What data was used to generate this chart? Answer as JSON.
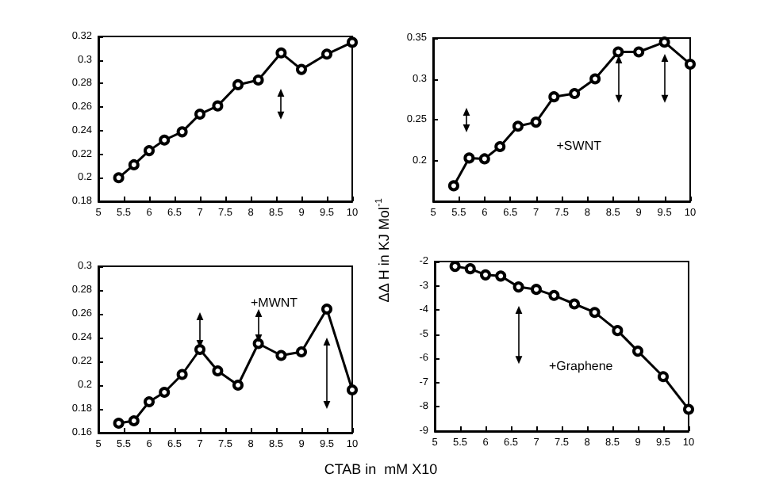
{
  "chart_data": [
    {
      "type": "line",
      "x": [
        5.4,
        5.7,
        6.0,
        6.3,
        6.65,
        7.0,
        7.35,
        7.75,
        8.15,
        8.6,
        9.0,
        9.5,
        10.0
      ],
      "values": [
        0.2,
        0.211,
        0.223,
        0.232,
        0.239,
        0.254,
        0.261,
        0.279,
        0.283,
        0.306,
        0.292,
        0.305,
        0.315
      ],
      "color": "#000000",
      "xlim": [
        5,
        10
      ],
      "xticks": [
        5,
        5.5,
        6,
        6.5,
        7,
        7.5,
        8,
        8.5,
        9,
        9.5,
        10
      ],
      "ylim": [
        0.18,
        0.32
      ],
      "yticks": [
        0.18,
        0.2,
        0.22,
        0.24,
        0.26,
        0.28,
        0.3,
        0.32
      ],
      "grid": false,
      "marker": "circle",
      "line_style": "solid"
    },
    {
      "type": "line",
      "x": [
        5.4,
        5.7,
        6.0,
        6.3,
        6.65,
        7.0,
        7.35,
        7.75,
        8.15,
        8.6,
        9.0,
        9.5,
        10.0
      ],
      "values": [
        0.169,
        0.203,
        0.202,
        0.217,
        0.242,
        0.247,
        0.278,
        0.282,
        0.3,
        0.333,
        0.333,
        0.345,
        0.318
      ],
      "color": "#000000",
      "xlim": [
        5,
        10
      ],
      "xticks": [
        5,
        5.5,
        6,
        6.5,
        7,
        7.5,
        8,
        8.5,
        9,
        9.5,
        10
      ],
      "ylim": [
        0.15,
        0.35
      ],
      "yticks": [
        0.2,
        0.25,
        0.3,
        0.35
      ],
      "grid": false,
      "marker": "circle",
      "line_style": "solid",
      "annotations": [
        "+SWNT"
      ]
    },
    {
      "type": "line",
      "x": [
        5.4,
        5.7,
        6.0,
        6.3,
        6.65,
        7.0,
        7.35,
        7.75,
        8.15,
        8.6,
        9.0,
        9.5,
        10.0
      ],
      "values": [
        0.168,
        0.17,
        0.186,
        0.194,
        0.209,
        0.23,
        0.212,
        0.2,
        0.235,
        0.225,
        0.228,
        0.264,
        0.196
      ],
      "color": "#000000",
      "xlim": [
        5,
        10
      ],
      "xticks": [
        5,
        5.5,
        6,
        6.5,
        7,
        7.5,
        8,
        8.5,
        9,
        9.5,
        10
      ],
      "ylim": [
        0.16,
        0.3
      ],
      "yticks": [
        0.16,
        0.18,
        0.2,
        0.22,
        0.24,
        0.26,
        0.28,
        0.3
      ],
      "grid": false,
      "marker": "circle",
      "line_style": "solid",
      "annotations": [
        "+MWNT"
      ],
      "xlabel": "CTAB in  mM X10"
    },
    {
      "type": "line",
      "x": [
        5.4,
        5.7,
        6.0,
        6.3,
        6.65,
        7.0,
        7.35,
        7.75,
        8.15,
        8.6,
        9.0,
        9.5,
        10.0
      ],
      "values": [
        -2.2,
        -2.3,
        -2.55,
        -2.6,
        -3.05,
        -3.15,
        -3.4,
        -3.75,
        -4.1,
        -4.85,
        -5.7,
        -6.75,
        -8.1
      ],
      "color": "#000000",
      "xlim": [
        5,
        10
      ],
      "xticks": [
        5,
        5.5,
        6,
        6.5,
        7,
        7.5,
        8,
        8.5,
        9,
        9.5,
        10
      ],
      "ylim": [
        -9,
        -2
      ],
      "yticks": [
        -9,
        -8,
        -7,
        -6,
        -5,
        -4,
        -3,
        -2
      ],
      "grid": false,
      "marker": "circle",
      "line_style": "solid",
      "annotations": [
        "+Graphene"
      ],
      "ylabel": "ΔΔ H in KJ Mol$^{-1}$"
    }
  ]
}
